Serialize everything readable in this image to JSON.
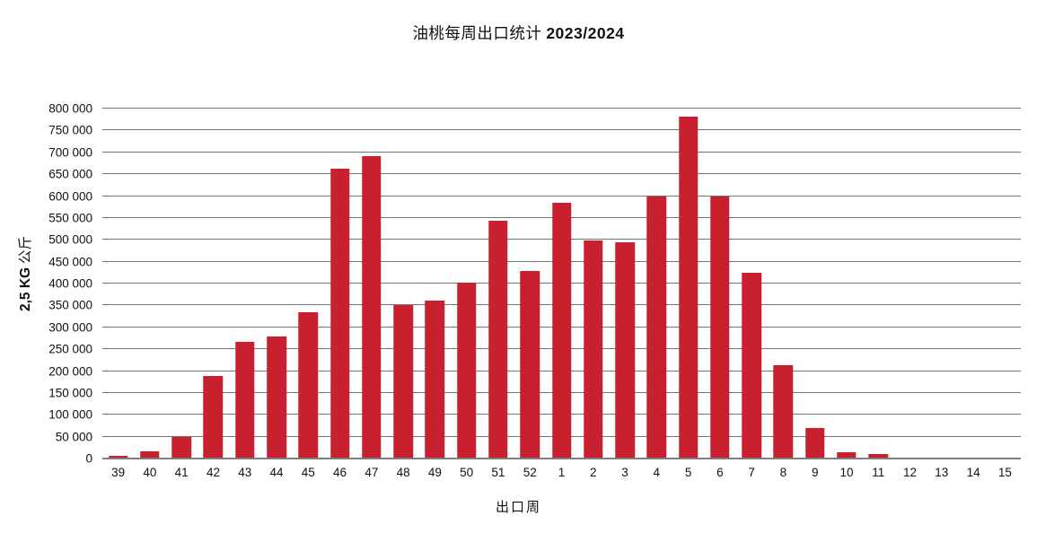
{
  "title": {
    "text": "油桃每周出口统计 2023/2024",
    "cjk_part": "油桃每周出口统计 ",
    "season_part": "2023/2024"
  },
  "y_axis_title": {
    "measure": "2,5 KG",
    "unit": " 公斤"
  },
  "colors": {
    "bar": "#C9202F",
    "gridline": "#737373",
    "axis_line": "#7E7E7E",
    "text": "#111111",
    "background": "#FFFFFF"
  },
  "y_axis": {
    "tick_labels": [
      "0",
      "50 000",
      "100 000",
      "150 000",
      "200 000",
      "250 000",
      "300 000",
      "350 000",
      "400 000",
      "450 000",
      "500 000",
      "550 000",
      "600 000",
      "650 000",
      "700 000",
      "750 000",
      "800 000"
    ]
  },
  "chart_data": {
    "type": "bar",
    "title": "油桃每周出口统计 2023/2024",
    "xlabel": "出口周",
    "ylabel": "2,5 KG 公斤",
    "categories": [
      "39",
      "40",
      "41",
      "42",
      "43",
      "44",
      "45",
      "46",
      "47",
      "48",
      "49",
      "50",
      "51",
      "52",
      "1",
      "2",
      "3",
      "4",
      "5",
      "6",
      "7",
      "8",
      "9",
      "10",
      "11",
      "12",
      "13",
      "14",
      "15"
    ],
    "values": [
      6000,
      16000,
      50000,
      188000,
      267000,
      280000,
      335000,
      663000,
      691000,
      350000,
      361000,
      403000,
      543000,
      428000,
      584000,
      498000,
      494000,
      598000,
      782000,
      598000,
      424000,
      213000,
      70000,
      14000,
      10000,
      3000,
      3000,
      3000,
      0
    ],
    "ylim": [
      0,
      800000
    ],
    "ytick_step": 50000,
    "grid": true,
    "legend": false,
    "bar_color": "#C9202F"
  }
}
